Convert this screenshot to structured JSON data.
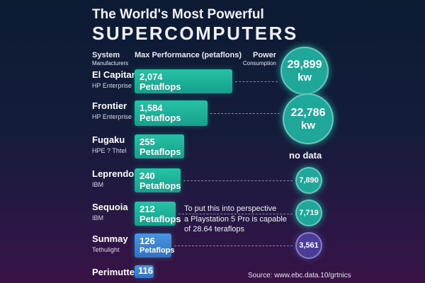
{
  "header": {
    "title_line1": "The World's Most Powerful",
    "title_line2": "SUPERCOMPUTERS"
  },
  "columns": {
    "system": "System",
    "system_sub": "Manufacturers",
    "performance": "Max Performance (petaflons)",
    "power": "Power",
    "power_sub": "Consumption"
  },
  "chart_data": {
    "type": "bar",
    "title": "The World's Most Powerful SUPERCOMPUTERS",
    "xlabel": "Max Performance (petaflons)",
    "ylabel": "System",
    "categories": [
      "El Capitan",
      "Frontier",
      "Fugaku",
      "Leprendo",
      "Sequoia",
      "Sunmay",
      "Perimutter"
    ],
    "manufacturers": [
      "HP Enterprise",
      "HP Enterprise",
      "HPE ? Thtel",
      "IBM",
      "IBM",
      "Tethulight",
      ""
    ],
    "values": [
      2074,
      1584,
      255,
      240,
      212,
      126,
      116
    ],
    "value_labels": [
      "2,074",
      "1,584",
      "255",
      "240",
      "212",
      "126",
      "116"
    ],
    "unit_label": "Petaflops",
    "power": [
      29899,
      22786,
      null,
      7890,
      7719,
      3561,
      null
    ],
    "power_labels": [
      "29,899",
      "22,786",
      "",
      "7,890",
      "7,719",
      "3,561",
      ""
    ],
    "power_unit": "kw",
    "power_none_label": "no data"
  },
  "annotation": {
    "line1": "To put this into perspective",
    "line2": "a Playstation 5 Pro is capable",
    "line3": "of 28.64 teraflops"
  },
  "source": "Source: www.ebc.data.10/grtnics",
  "colors": {
    "bar_teal": "#19b39a",
    "bar_blue": "#3a86d6",
    "circle_teal": "#1fa89a",
    "circle_purple": "#4b3c97"
  }
}
